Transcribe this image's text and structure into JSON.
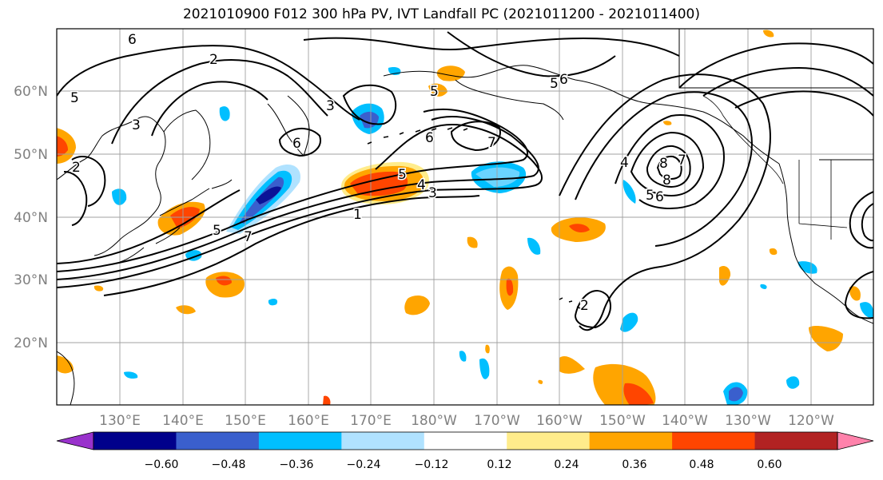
{
  "title": "2021010900 F012 300 hPa PV, IVT Landfall PC (2021011200 - 2021011400)",
  "lat_labels": [
    "60°N",
    "50°N",
    "40°N",
    "30°N",
    "20°N"
  ],
  "lon_labels": [
    "130°E",
    "140°E",
    "150°E",
    "160°E",
    "170°E",
    "180°W",
    "170°W",
    "160°W",
    "150°W",
    "140°W",
    "130°W",
    "120°W"
  ],
  "colorbar": {
    "ticks": [
      "−0.60",
      "−0.48",
      "−0.36",
      "−0.24",
      "−0.12",
      "0.12",
      "0.24",
      "0.36",
      "0.48",
      "0.60"
    ],
    "colors": [
      "#9932cc",
      "#00008b",
      "#3a5fcd",
      "#00bfff",
      "#b0e2ff",
      "#ffffff",
      "#ffec8b",
      "#ffa500",
      "#ff4500",
      "#b22222",
      "#ff82ab"
    ]
  },
  "contour_labels": [
    "6",
    "2",
    "5",
    "3",
    "2",
    "5",
    "3",
    "5",
    "4",
    "3",
    "1",
    "6",
    "7",
    "5",
    "6",
    "8",
    "7",
    "4",
    "5",
    "6",
    "2",
    "5",
    "7",
    "8",
    "6"
  ]
}
